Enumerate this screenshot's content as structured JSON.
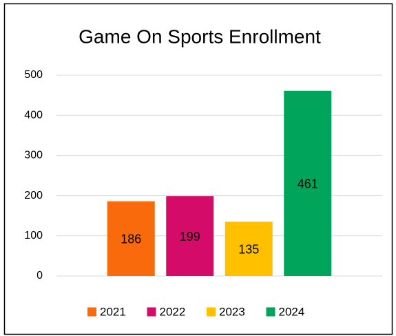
{
  "chart_data": {
    "type": "bar",
    "title": "Game On Sports Enrollment",
    "series": [
      {
        "name": "2021",
        "color": "#f86a0c",
        "values": [
          186
        ]
      },
      {
        "name": "2022",
        "color": "#d50b6a",
        "values": [
          199
        ]
      },
      {
        "name": "2023",
        "color": "#ffc000",
        "values": [
          135
        ]
      },
      {
        "name": "2024",
        "color": "#00a45a",
        "values": [
          461
        ]
      }
    ],
    "ylim": [
      0,
      500
    ],
    "yticks": [
      0,
      100,
      200,
      300,
      400,
      500
    ],
    "grid": true,
    "legend": "bottom"
  }
}
